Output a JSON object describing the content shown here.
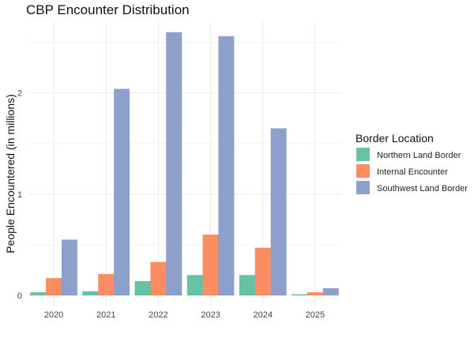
{
  "chart_data": {
    "type": "bar",
    "title": "CBP Encounter Distribution",
    "xlabel": "",
    "ylabel": "People Encountered (in millions)",
    "categories": [
      "2020",
      "2021",
      "2022",
      "2023",
      "2024",
      "2025"
    ],
    "ylim": [
      0,
      2.7
    ],
    "yticks": [
      0,
      1,
      2
    ],
    "grid": true,
    "legend": {
      "title": "Border Location",
      "position": "right"
    },
    "series": [
      {
        "name": "Northern Land Border",
        "color": "#66c2a5",
        "values": [
          0.03,
          0.04,
          0.14,
          0.2,
          0.2,
          0.01
        ]
      },
      {
        "name": "Internal Encounter",
        "color": "#fc8d62",
        "values": [
          0.17,
          0.21,
          0.33,
          0.6,
          0.47,
          0.03
        ]
      },
      {
        "name": "Southwest Land Border",
        "color": "#8da0cb",
        "values": [
          0.55,
          2.04,
          2.6,
          2.56,
          1.65,
          0.07
        ]
      }
    ]
  }
}
